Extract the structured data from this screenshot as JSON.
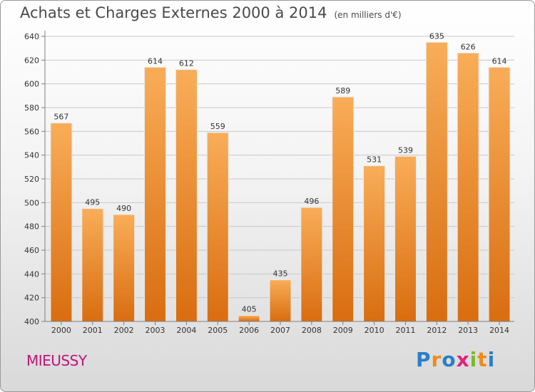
{
  "title": "Achats et Charges Externes 2000 à 2014",
  "subtitle": "(en milliers d'€)",
  "place": "MIEUSSY",
  "logo": {
    "letters": [
      "P",
      "r",
      "o",
      "x",
      "i",
      "t",
      "i"
    ],
    "colors": [
      "#2a7fc9",
      "#f08a1c",
      "#2a7fc9",
      "#e2247c",
      "#7ab929",
      "#f08a1c",
      "#2a7fc9"
    ]
  },
  "colors": {
    "bar_top": "#f9ad58",
    "bar_bottom": "#d96d10",
    "axis": "#7f7f7f",
    "grid": "#c8c8c8"
  },
  "chart_data": {
    "type": "bar",
    "categories": [
      "2000",
      "2001",
      "2002",
      "2003",
      "2004",
      "2005",
      "2006",
      "2007",
      "2008",
      "2009",
      "2010",
      "2011",
      "2012",
      "2013",
      "2014"
    ],
    "values": [
      567,
      495,
      490,
      614,
      612,
      559,
      405,
      435,
      496,
      589,
      531,
      539,
      635,
      626,
      614
    ],
    "data_labels": [
      "567",
      "495",
      "490",
      "614",
      "612",
      "559",
      "405",
      "435",
      "496",
      "589",
      "531",
      "539",
      "635",
      "626",
      "614"
    ],
    "y_ticks": [
      "400",
      "420",
      "440",
      "460",
      "480",
      "500",
      "520",
      "540",
      "560",
      "580",
      "600",
      "620",
      "640"
    ],
    "ylim": [
      400,
      640
    ],
    "grid": true,
    "title": "Achats et Charges Externes 2000 à 2014",
    "xlabel": "",
    "ylabel": ""
  }
}
